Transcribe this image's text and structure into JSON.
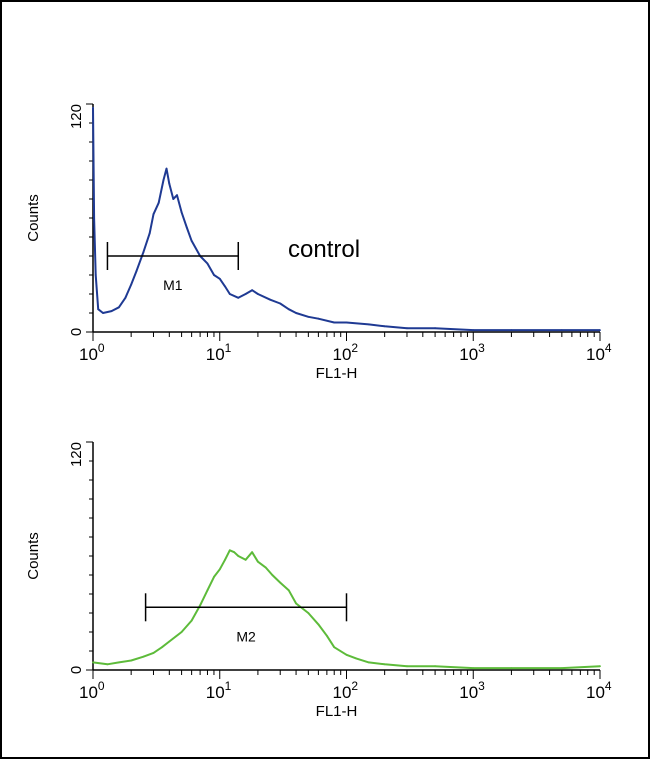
{
  "chart_data": [
    {
      "type": "line",
      "title": "",
      "xlabel": "FL1-H",
      "ylabel": "Counts",
      "x_scale": "log",
      "xlim": [
        1,
        10000
      ],
      "ylim": [
        0,
        120
      ],
      "y_tick_labels": [
        "0",
        "120"
      ],
      "x_tick_labels": [
        {
          "base": "10",
          "exp": "0"
        },
        {
          "base": "10",
          "exp": "1"
        },
        {
          "base": "10",
          "exp": "2"
        },
        {
          "base": "10",
          "exp": "3"
        },
        {
          "base": "10",
          "exp": "4"
        }
      ],
      "annotation": "control",
      "series_color": "#1f3a93",
      "gate": {
        "label": "M1",
        "x_start": 1.3,
        "x_end": 14,
        "y": 40
      },
      "series": [
        {
          "x": [
            1.0,
            1.02,
            1.05,
            1.1,
            1.2,
            1.4,
            1.6,
            1.8,
            2.0,
            2.2,
            2.5,
            2.8,
            3.0,
            3.3,
            3.6,
            3.8,
            4.0,
            4.3,
            4.6,
            5.0,
            5.5,
            6.0,
            7.0,
            8.0,
            9.0,
            10.0,
            11.0,
            12.0,
            14.0,
            16.0,
            18.0,
            20.0,
            25.0,
            30.0,
            35.0,
            40.0,
            50.0,
            60.0,
            80.0,
            100.0,
            150.0,
            200.0,
            300.0,
            500.0,
            1000.0,
            2000.0,
            5000.0,
            10000.0
          ],
          "y": [
            118,
            60,
            30,
            12,
            10,
            11,
            13,
            18,
            25,
            32,
            42,
            52,
            62,
            68,
            80,
            86,
            78,
            70,
            72,
            63,
            55,
            48,
            40,
            36,
            30,
            28,
            24,
            20,
            18,
            20,
            22,
            20,
            17,
            15,
            12,
            10,
            8,
            7,
            5,
            5,
            4,
            3,
            2,
            2,
            1,
            1,
            1,
            1
          ]
        }
      ]
    },
    {
      "type": "line",
      "title": "",
      "xlabel": "FL1-H",
      "ylabel": "Counts",
      "x_scale": "log",
      "xlim": [
        1,
        10000
      ],
      "ylim": [
        0,
        120
      ],
      "y_tick_labels": [
        "0",
        "120"
      ],
      "x_tick_labels": [
        {
          "base": "10",
          "exp": "0"
        },
        {
          "base": "10",
          "exp": "1"
        },
        {
          "base": "10",
          "exp": "2"
        },
        {
          "base": "10",
          "exp": "3"
        },
        {
          "base": "10",
          "exp": "4"
        }
      ],
      "series_color": "#5dbb3a",
      "gate": {
        "label": "M2",
        "x_start": 2.6,
        "x_end": 100,
        "y": 33
      },
      "series": [
        {
          "x": [
            1.0,
            1.3,
            1.6,
            2.0,
            2.5,
            3.0,
            3.5,
            4.0,
            5.0,
            6.0,
            7.0,
            8.0,
            9.0,
            10.0,
            11.0,
            12.0,
            13.0,
            14.0,
            16.0,
            18.0,
            20.0,
            23.0,
            26.0,
            30.0,
            35.0,
            40.0,
            50.0,
            60.0,
            70.0,
            80.0,
            100.0,
            120.0,
            150.0,
            200.0,
            300.0,
            500.0,
            1000.0,
            2000.0,
            5000.0,
            10000.0
          ],
          "y": [
            4,
            3,
            4,
            5,
            7,
            9,
            12,
            15,
            20,
            26,
            34,
            42,
            49,
            53,
            58,
            63,
            62,
            60,
            58,
            62,
            57,
            54,
            50,
            46,
            42,
            35,
            30,
            24,
            18,
            12,
            8,
            6,
            4,
            3,
            2,
            2,
            1,
            1,
            1,
            2
          ]
        }
      ]
    }
  ]
}
